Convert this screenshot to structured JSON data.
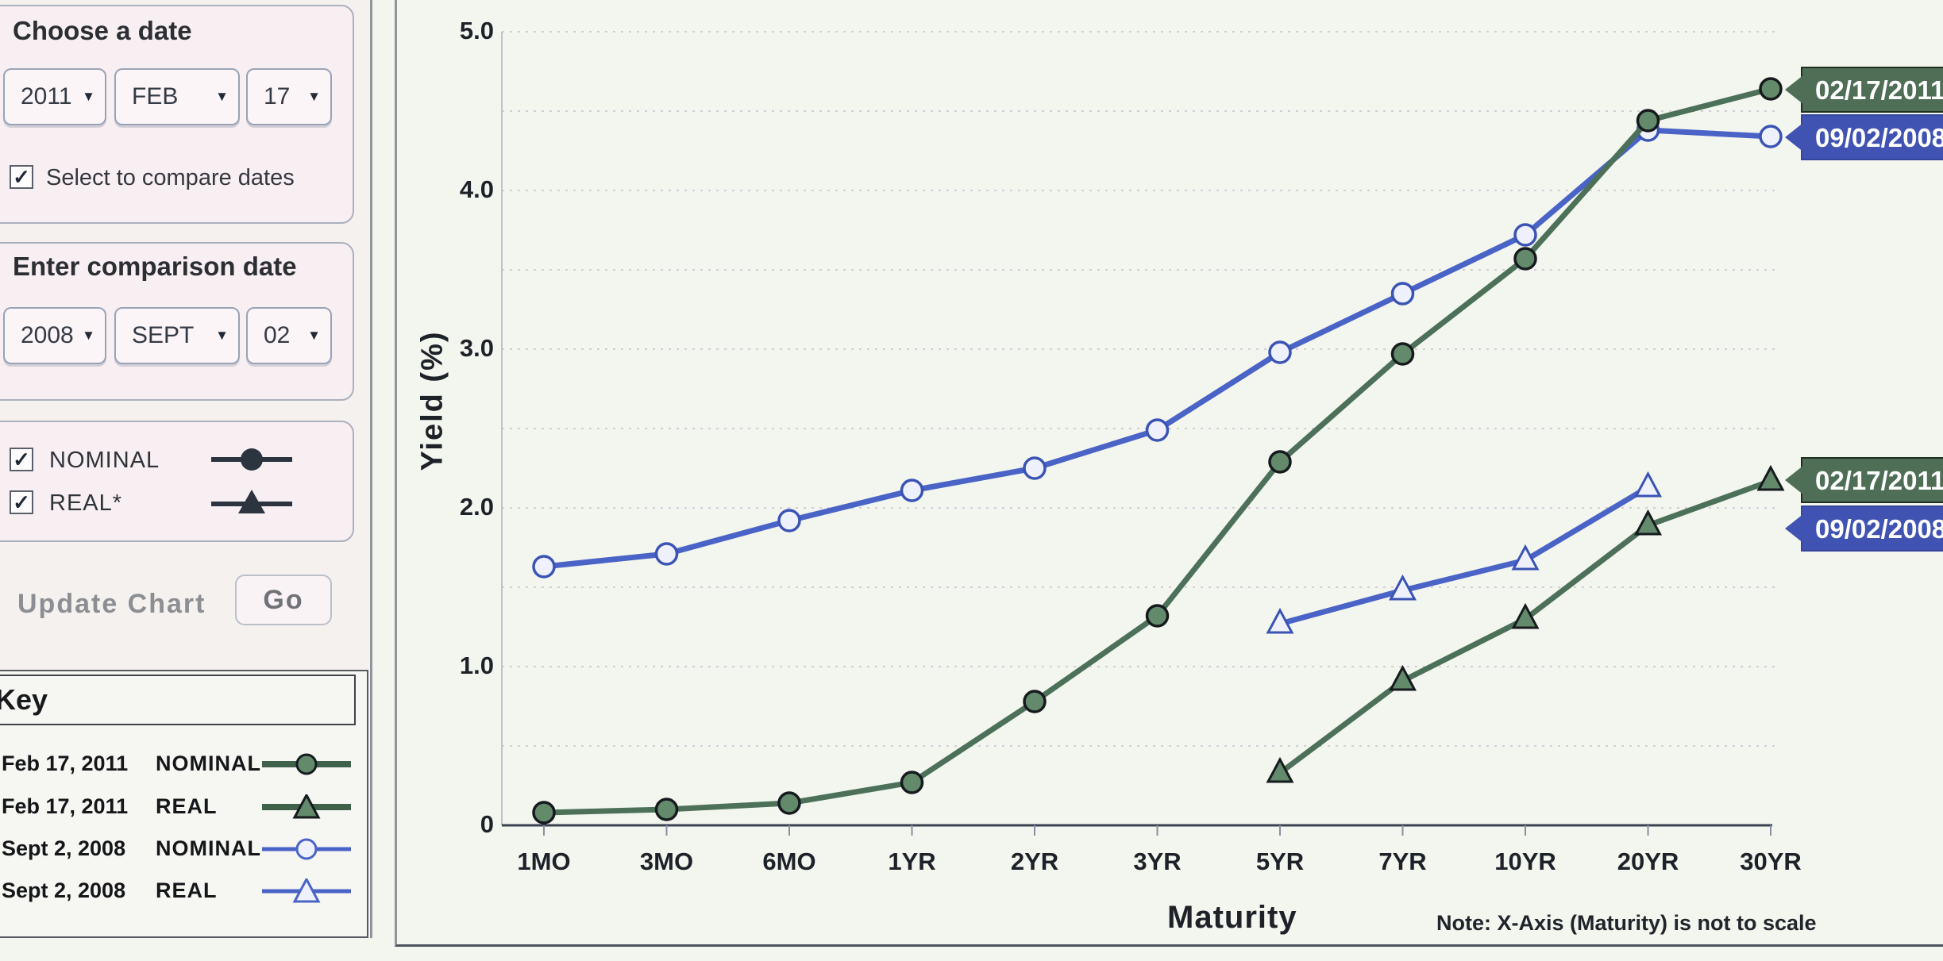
{
  "icons": {
    "dropdown_caret": "▼",
    "checkbox_check": "✓"
  },
  "sidebar": {
    "choose_date": {
      "title": "Choose a date",
      "year": "2011",
      "month": "FEB",
      "day": "17",
      "compare_label": "Select to compare dates",
      "compare_checked": true
    },
    "comparison_date": {
      "title": "Enter comparison date",
      "year": "2008",
      "month": "SEPT",
      "day": "02"
    },
    "series_toggles": {
      "nominal_label": "NOMINAL",
      "nominal_checked": true,
      "real_label": "REAL*",
      "real_checked": true
    },
    "update_chart_label": "Update Chart",
    "go_label": "Go",
    "key": {
      "title": "Key",
      "rows": [
        {
          "date": "Feb 17, 2011",
          "series": "NOMINAL",
          "marker": "circle-filled-green"
        },
        {
          "date": "Feb 17, 2011",
          "series": "REAL",
          "marker": "triangle-filled-green"
        },
        {
          "date": "Sept 2, 2008",
          "series": "NOMINAL",
          "marker": "circle-open-blue"
        },
        {
          "date": "Sept 2, 2008",
          "series": "REAL",
          "marker": "triangle-open-blue"
        }
      ]
    }
  },
  "chart_data": {
    "type": "line",
    "xlabel": "Maturity",
    "ylabel": "Yield (%)",
    "note": "Note: X-Axis (Maturity) is not to scale",
    "categories": [
      "1MO",
      "3MO",
      "6MO",
      "1YR",
      "2YR",
      "3YR",
      "5YR",
      "7YR",
      "10YR",
      "20YR",
      "30YR"
    ],
    "ylim": [
      0,
      5
    ],
    "grid": "horizontal dashed every 0.5",
    "legend_position": "left-sidebar-key",
    "y_ticks": [
      {
        "value": 5,
        "label": "5.0"
      },
      {
        "value": 4,
        "label": "4.0"
      },
      {
        "value": 3,
        "label": "3.0"
      },
      {
        "value": 2,
        "label": "2.0"
      },
      {
        "value": 1,
        "label": "1.0"
      },
      {
        "value": 0,
        "label": "0"
      }
    ],
    "series": [
      {
        "id": "nominal-2011",
        "name": "Feb 17, 2011 NOMINAL",
        "marker": "circle-filled",
        "color": "#4c7158",
        "marker_fill": "#628a6b",
        "marker_stroke": "#161a1f",
        "values": [
          0.08,
          0.1,
          0.14,
          0.27,
          0.78,
          1.32,
          2.29,
          2.97,
          3.57,
          4.44,
          4.64
        ]
      },
      {
        "id": "real-2011",
        "name": "Feb 17, 2011 REAL",
        "marker": "triangle-filled",
        "color": "#4c7158",
        "marker_fill": "#628a6b",
        "marker_stroke": "#161a1f",
        "values": [
          null,
          null,
          null,
          null,
          null,
          null,
          0.33,
          0.91,
          1.3,
          1.89,
          2.17
        ]
      },
      {
        "id": "nominal-2008",
        "name": "Sept 2, 2008 NOMINAL",
        "marker": "circle-open",
        "color": "#4a63c6",
        "marker_fill": "#eef0fb",
        "marker_stroke": "#3a53b4",
        "values": [
          1.63,
          1.71,
          1.92,
          2.11,
          2.25,
          2.49,
          2.98,
          3.35,
          3.72,
          4.38,
          4.34
        ]
      },
      {
        "id": "real-2008",
        "name": "Sept 2, 2008 REAL",
        "marker": "triangle-open",
        "color": "#4a63c6",
        "marker_fill": "#eef0fb",
        "marker_stroke": "#3a53b4",
        "values": [
          null,
          null,
          null,
          null,
          null,
          null,
          1.27,
          1.48,
          1.67,
          2.13,
          null
        ]
      }
    ],
    "tags": [
      {
        "label": "02/17/2011",
        "series_id": "nominal-2011",
        "color": "#4e6e55"
      },
      {
        "label": "09/02/2008",
        "series_id": "nominal-2008",
        "color": "#4053b2"
      },
      {
        "label": "02/17/2011",
        "series_id": "real-2011",
        "color": "#4e6e55"
      },
      {
        "label": "09/02/2008",
        "series_id": "real-2008",
        "color": "#4053b2"
      }
    ]
  }
}
